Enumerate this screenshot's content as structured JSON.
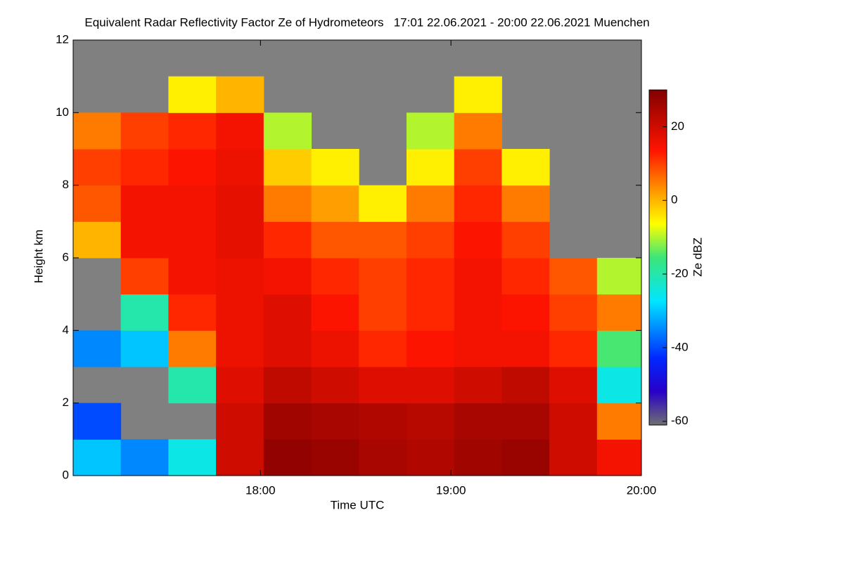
{
  "chart_data": {
    "type": "heatmap",
    "title": "Equivalent Radar Reflectivity Factor Ze of Hydrometeors   17:01 22.06.2021 - 20:00 22.06.2021 Muenchen",
    "xlabel": "Time UTC",
    "ylabel": "Height km",
    "colorbar_label": "Ze dBZ",
    "xlim": [
      1,
      180
    ],
    "xticks": [
      {
        "value": 60,
        "label": "18:00"
      },
      {
        "value": 120,
        "label": "19:00"
      },
      {
        "value": 180,
        "label": "20:00"
      }
    ],
    "ylim": [
      0,
      12
    ],
    "yticks": [
      0,
      2,
      4,
      6,
      8,
      10,
      12
    ],
    "clim": [
      -61,
      30
    ],
    "cticks": [
      20,
      0,
      -20,
      -40,
      -60
    ],
    "background": "#808080",
    "xbins": [
      1,
      16,
      31,
      46,
      61,
      76,
      91,
      106,
      121,
      136,
      151,
      166,
      180
    ],
    "ybins": [
      0,
      1,
      2,
      3,
      4,
      5,
      6,
      7,
      8,
      9,
      10,
      11,
      12
    ],
    "z": [
      [
        -30,
        -35,
        -25,
        20,
        28,
        27,
        25,
        24,
        26,
        27,
        20,
        15
      ],
      [
        -40,
        null,
        null,
        20,
        26,
        25,
        24,
        23,
        25,
        25,
        20,
        5
      ],
      [
        null,
        null,
        -20,
        18,
        22,
        20,
        18,
        18,
        20,
        22,
        18,
        -25
      ],
      [
        -35,
        -30,
        5,
        16,
        18,
        16,
        12,
        14,
        15,
        15,
        12,
        -15
      ],
      [
        null,
        -20,
        12,
        16,
        18,
        14,
        10,
        12,
        15,
        14,
        10,
        5
      ],
      [
        null,
        10,
        15,
        16,
        15,
        12,
        10,
        12,
        15,
        12,
        8,
        -10
      ],
      [
        0,
        15,
        15,
        17,
        12,
        8,
        8,
        10,
        14,
        10,
        null,
        null
      ],
      [
        8,
        15,
        15,
        17,
        5,
        2,
        -5,
        5,
        12,
        5,
        null,
        null
      ],
      [
        10,
        12,
        14,
        16,
        -2,
        -5,
        null,
        -5,
        10,
        -5,
        null,
        null
      ],
      [
        5,
        10,
        12,
        15,
        -10,
        null,
        null,
        -10,
        5,
        null,
        null,
        null
      ],
      [
        null,
        null,
        -5,
        0,
        null,
        null,
        null,
        null,
        -5,
        null,
        null,
        null
      ],
      [
        null,
        null,
        null,
        null,
        null,
        null,
        null,
        null,
        null,
        null,
        null,
        null
      ]
    ]
  }
}
